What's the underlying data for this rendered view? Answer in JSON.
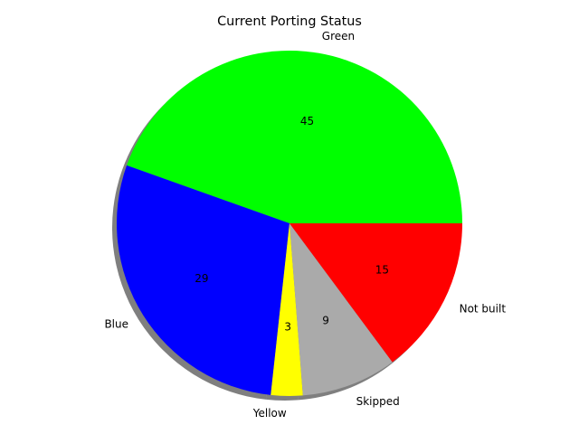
{
  "chart_data": {
    "type": "pie",
    "title": "Current Porting Status",
    "slices": [
      {
        "label": "Green",
        "value": 45,
        "display": "45",
        "color": "#00ff00"
      },
      {
        "label": "Blue",
        "value": 29,
        "display": "29",
        "color": "#0000ff"
      },
      {
        "label": "Yellow",
        "value": 3,
        "display": "3",
        "color": "#ffff00"
      },
      {
        "label": "Skipped",
        "value": 9,
        "display": "9",
        "color": "#aaaaaa"
      },
      {
        "label": "Not built",
        "value": 15,
        "display": "15",
        "color": "#ff0000"
      }
    ],
    "start_angle_deg": 0,
    "direction": "counterclockwise",
    "shadow": true,
    "legend": "none"
  }
}
